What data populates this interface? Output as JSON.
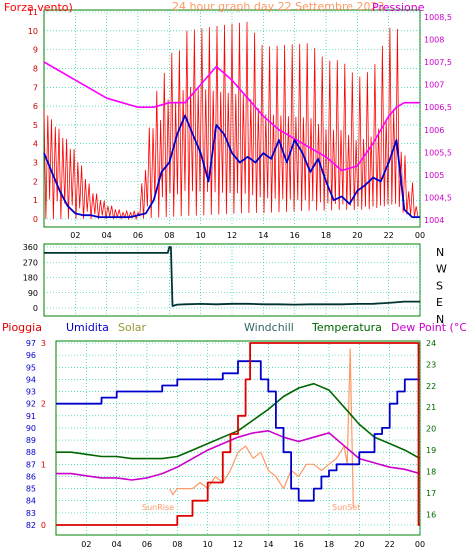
{
  "header": {
    "left_label": "Forza vento)",
    "title": "24 hour graph day   22 Settembre 2023",
    "right_label": "Pressione"
  },
  "panels": {
    "bottom_labels": {
      "pioggia": "Pioggia",
      "umidita": "Umidita",
      "solar": "Solar",
      "windchill": "Windchill",
      "temperatura": "Temperatura",
      "dewpoint": "Dew Point (°C)"
    },
    "sunrise": "SunRise",
    "sunset": "SunSet"
  },
  "colors": {
    "wind_speed": "#ff0000",
    "wind_avg": "#0000cc",
    "pressure": "#ff00ff",
    "wind_dir": "#003333",
    "rain": "#dd0000",
    "humidity": "#0000cc",
    "solar": "#ff9966",
    "windchill": "#cc00cc",
    "temperature": "#006600",
    "dewpoint": "#cc00cc",
    "grid": "#00cc99",
    "frame": "#008000"
  },
  "chart_data": [
    {
      "type": "line",
      "name": "wind_pressure",
      "x_ticks": [
        "02",
        "04",
        "06",
        "08",
        "10",
        "12",
        "14",
        "16",
        "18",
        "20",
        "22",
        "00"
      ],
      "y_left_ticks": [
        "0",
        "1",
        "2",
        "3",
        "4",
        "5",
        "6",
        "7",
        "8",
        "9",
        "10",
        "11"
      ],
      "y_right_ticks": [
        "1004",
        "1004,5",
        "1005",
        "1005,5",
        "1006",
        "1006,5",
        "1007",
        "1007,5",
        "1008",
        "1008,5"
      ],
      "ylim_left": [
        0,
        11
      ],
      "ylim_right": [
        1003.85,
        1008.65
      ],
      "xlim": [
        0,
        24
      ],
      "wind_avg": {
        "x": [
          0,
          0.5,
          1,
          1.5,
          2,
          2.5,
          3,
          3.5,
          4,
          4.5,
          5,
          5.5,
          6,
          6.5,
          7,
          7.5,
          8,
          8.5,
          9,
          9.5,
          10,
          10.5,
          11,
          11.5,
          12,
          12.5,
          13,
          13.5,
          14,
          14.5,
          15,
          15.5,
          16,
          16.5,
          17,
          17.5,
          18,
          18.5,
          19,
          19.5,
          20,
          20.5,
          21,
          21.5,
          22,
          22.5,
          23,
          23.5,
          24
        ],
        "y": [
          3.5,
          2.5,
          1.5,
          0.7,
          0.3,
          0.2,
          0.2,
          0.1,
          0.1,
          0.1,
          0.1,
          0.1,
          0.2,
          0.3,
          1,
          2.5,
          3,
          4.5,
          5.5,
          4.5,
          3.5,
          2,
          5,
          4.5,
          3.5,
          3,
          3.3,
          3,
          3.5,
          3.2,
          4.2,
          3,
          4.2,
          3.5,
          2.5,
          3.2,
          2,
          1,
          1.2,
          0.8,
          1.5,
          1.8,
          2.2,
          2,
          3,
          4.2,
          0.5,
          0.1,
          0.1
        ]
      },
      "wind_gust_envelope": {
        "x": [
          0,
          1,
          2,
          3,
          4,
          5,
          6,
          6.5,
          7,
          7.5,
          8,
          8.5,
          9,
          10,
          11,
          12,
          13,
          14,
          15,
          16,
          17,
          18,
          19,
          20,
          21,
          22,
          22.5,
          23,
          24
        ],
        "y": [
          7.5,
          6,
          4.5,
          2,
          1,
          0.5,
          0.5,
          4,
          7.5,
          8,
          10,
          9.5,
          11,
          11,
          11,
          11,
          11,
          9.5,
          9.5,
          9.5,
          9.5,
          8.5,
          8.5,
          7.5,
          8,
          10,
          11,
          3.5,
          0.5
        ]
      },
      "pressure": {
        "x": [
          0,
          1,
          2,
          3,
          4,
          5,
          6,
          7,
          8,
          9,
          10,
          11,
          12,
          13,
          14,
          15,
          16,
          17,
          18,
          19,
          20,
          21,
          22,
          22.5,
          23,
          23.5,
          24
        ],
        "y": [
          1007.5,
          1007.3,
          1007.1,
          1006.9,
          1006.7,
          1006.6,
          1006.5,
          1006.5,
          1006.6,
          1006.6,
          1007.0,
          1007.4,
          1007.1,
          1006.7,
          1006.3,
          1006.0,
          1005.8,
          1005.6,
          1005.4,
          1005.1,
          1005.2,
          1005.7,
          1006.3,
          1006.5,
          1006.6,
          1006.6,
          1006.6
        ]
      }
    },
    {
      "type": "line",
      "name": "wind_direction",
      "y_left_ticks": [
        "0",
        "90",
        "180",
        "270",
        "360"
      ],
      "y_right_ticks": [
        "N",
        "W",
        "S",
        "E",
        "N"
      ],
      "ylim": [
        0,
        360
      ],
      "xlim": [
        0,
        24
      ],
      "x": [
        0,
        1,
        2,
        3,
        4,
        5,
        6,
        7,
        7.9,
        8,
        8.1,
        8.2,
        8.5,
        9,
        10,
        11,
        12,
        13,
        14,
        15,
        16,
        17,
        18,
        19,
        20,
        21,
        22,
        23,
        24
      ],
      "y": [
        325,
        325,
        325,
        325,
        325,
        325,
        325,
        325,
        325,
        360,
        360,
        12,
        20,
        22,
        24,
        22,
        25,
        25,
        22,
        22,
        20,
        22,
        22,
        22,
        24,
        25,
        30,
        38,
        38
      ]
    },
    {
      "type": "line",
      "name": "temperature_humidity",
      "x_ticks": [
        "02",
        "04",
        "06",
        "08",
        "10",
        "12",
        "14",
        "16",
        "18",
        "20",
        "22",
        "00"
      ],
      "y_left_ticks": [
        "82",
        "83",
        "84",
        "85",
        "86",
        "87",
        "88",
        "89",
        "90",
        "91",
        "92",
        "93",
        "94",
        "95",
        "96",
        "97"
      ],
      "y_left_rain_ticks": [
        "0",
        "1",
        "2",
        "3"
      ],
      "y_right_ticks": [
        "16",
        "17",
        "18",
        "19",
        "20",
        "21",
        "22",
        "23",
        "24"
      ],
      "ylim_left": [
        82,
        97
      ],
      "ylim_right": [
        15.5,
        24
      ],
      "xlim": [
        0,
        24
      ],
      "humidity": {
        "x": [
          0,
          1,
          2,
          2.5,
          3,
          4,
          5,
          6,
          7,
          8,
          9,
          10,
          11,
          12,
          12.5,
          13,
          13.5,
          14,
          14.5,
          15,
          15.5,
          16,
          16.5,
          17,
          17.5,
          18,
          18.5,
          19,
          19.5,
          20,
          21,
          21.5,
          22,
          22.5,
          23,
          24
        ],
        "y": [
          92,
          92,
          92,
          92,
          92.5,
          93,
          93,
          93,
          93.5,
          94,
          94,
          94,
          94.5,
          95.5,
          95.5,
          95.5,
          94,
          93,
          90,
          88,
          85,
          84,
          84,
          85,
          86,
          86.5,
          87,
          87,
          87,
          88,
          89.5,
          90,
          92,
          93,
          94,
          94
        ]
      },
      "rain": {
        "x": [
          0,
          7,
          8,
          9,
          10,
          11,
          11.5,
          12,
          12.5,
          12.8,
          13,
          18,
          21,
          23.8,
          23.9,
          24
        ],
        "y": [
          0,
          0,
          0.15,
          0.4,
          0.7,
          1.2,
          1.5,
          1.8,
          2.4,
          3,
          3,
          3,
          3,
          3,
          0,
          0
        ]
      },
      "temperature": {
        "x": [
          0,
          1,
          2,
          3,
          4,
          5,
          6,
          7,
          8,
          9,
          10,
          11,
          12,
          13,
          14,
          15,
          16,
          17,
          18,
          19,
          20,
          21,
          22,
          23,
          24
        ],
        "y": [
          18.9,
          18.9,
          18.8,
          18.7,
          18.7,
          18.6,
          18.6,
          18.6,
          18.7,
          19.0,
          19.3,
          19.6,
          19.9,
          20.4,
          20.9,
          21.5,
          21.9,
          22.1,
          21.8,
          21.0,
          20.2,
          19.6,
          19.3,
          19.0,
          18.6
        ]
      },
      "windchill_dewpoint": {
        "x": [
          0,
          1,
          2,
          3,
          4,
          5,
          6,
          7,
          8,
          9,
          10,
          11,
          12,
          13,
          14,
          15,
          16,
          17,
          18,
          19,
          20,
          21,
          22,
          23,
          24
        ],
        "y": [
          17.9,
          17.9,
          17.8,
          17.7,
          17.7,
          17.6,
          17.7,
          17.9,
          18.2,
          18.6,
          19.0,
          19.3,
          19.6,
          19.8,
          19.9,
          19.6,
          19.4,
          19.6,
          19.8,
          19.2,
          18.6,
          18.4,
          18.2,
          18.1,
          17.9
        ]
      },
      "solar": {
        "x": [
          7.5,
          7.7,
          8,
          8.5,
          9,
          9.5,
          10,
          10.5,
          11,
          11.5,
          12,
          12.5,
          13,
          13.5,
          14,
          14.5,
          15,
          15.5,
          16,
          16.5,
          17,
          17.5,
          18,
          18.5,
          19,
          19.2,
          19.4,
          19.6
        ],
        "y": [
          0.6,
          0.5,
          0.6,
          0.6,
          0.6,
          0.7,
          0.6,
          0.8,
          0.7,
          0.9,
          1.2,
          1.3,
          1.1,
          1.2,
          0.9,
          0.8,
          0.6,
          0.9,
          0.8,
          1.0,
          1.0,
          0.9,
          1.0,
          1.1,
          1.3,
          1.0,
          2.9,
          0.3
        ]
      }
    }
  ]
}
